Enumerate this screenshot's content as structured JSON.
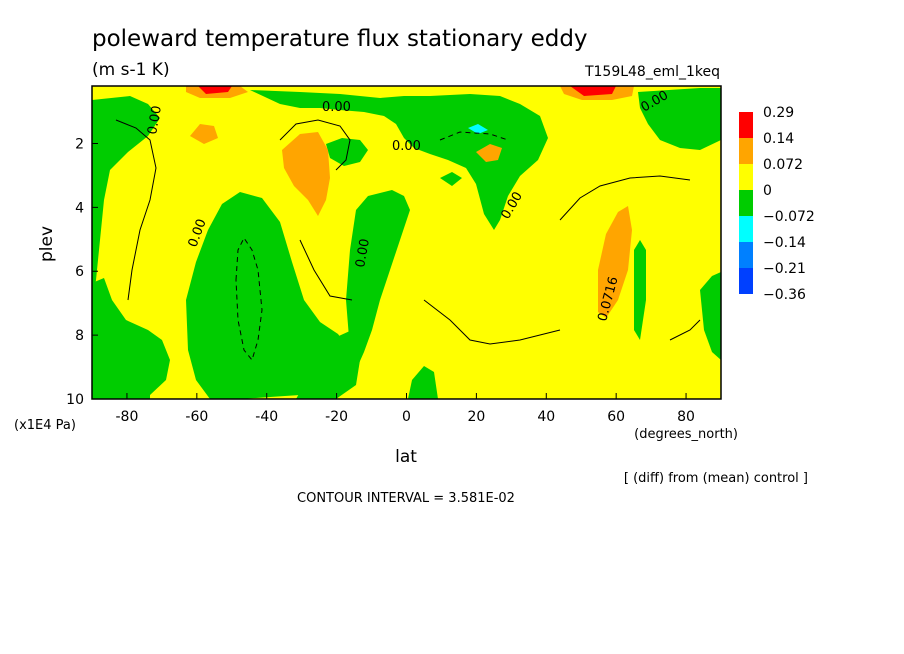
{
  "chart_data": {
    "type": "heatmap",
    "title": "poleward temperature flux stationary eddy",
    "units": "(m s-1 K)",
    "run_label": "T159L48_eml_1keq",
    "xlabel": "lat",
    "xunits": "(degrees_north)",
    "ylabel": "plev",
    "yunits": "(x1E4 Pa)",
    "xlim": [
      -90,
      90
    ],
    "ylim": [
      10,
      0.2
    ],
    "x_ticks": [
      -80,
      -60,
      -40,
      -20,
      0,
      20,
      40,
      60,
      80
    ],
    "x_tick_labels": [
      "-80",
      "-60",
      "-40",
      "-20",
      "0",
      "20",
      "40",
      "60",
      "80"
    ],
    "y_ticks": [
      2,
      4,
      6,
      8,
      10
    ],
    "y_tick_labels": [
      "2",
      "4",
      "6",
      "8",
      "10"
    ],
    "levels": [
      0.29,
      0.14,
      0.072,
      0,
      -0.072,
      -0.14,
      -0.21,
      -0.36
    ],
    "level_labels": [
      "0.29",
      "0.14",
      "0.072",
      "0",
      "−0.072",
      "−0.14",
      "−0.21",
      "−0.36"
    ],
    "colorbar_colors": [
      "#ff0000",
      "#ffa500",
      "#ffff00",
      "#00cc00",
      "#00ffff",
      "#0080ff",
      "#0040ff"
    ],
    "contour_labels": [
      "0.00",
      "0.00",
      "0.00",
      "0.00",
      "0.00",
      "0.00",
      "0.00",
      "0.0716"
    ],
    "contour_interval_text": "CONTOUR INTERVAL = 3.581E-02",
    "diff_note": "[ (diff) from (mean) control ]",
    "grid": false,
    "legend_position": "right"
  },
  "colors": {
    "yellow": "#ffff00",
    "green": "#00cc00",
    "orange": "#ffa500",
    "red": "#ff0000",
    "cyan": "#00ffff",
    "blue": "#0080ff"
  }
}
